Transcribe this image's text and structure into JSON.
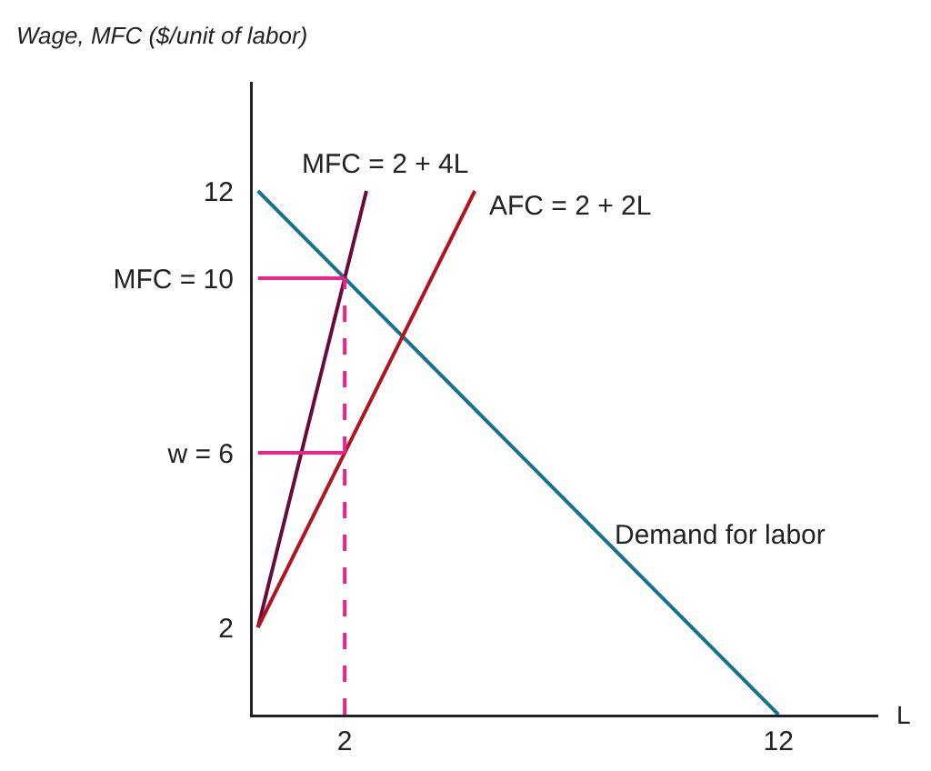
{
  "chart_data": {
    "type": "line",
    "xlabel": "L",
    "ylabel": "Wage, MFC ($/unit of labor)",
    "series": [
      {
        "color": "#1a7090",
        "x": [
          0,
          12
        ],
        "values": [
          12,
          0
        ]
      },
      {
        "color": "#6a0a3c",
        "x": [
          0,
          2.5
        ],
        "values": [
          2,
          12
        ]
      },
      {
        "color": "#b0141e",
        "x": [
          0,
          5
        ],
        "values": [
          2,
          12
        ]
      },
      {
        "color": "#ee2288",
        "x": [
          0,
          2
        ],
        "values": [
          10,
          10
        ]
      },
      {
        "color": "#ee2288",
        "x": [
          0,
          2
        ],
        "values": [
          6,
          6
        ]
      },
      {
        "color": "#ee2288",
        "x": [
          2,
          2
        ],
        "values": [
          0,
          10
        ],
        "line_style": "dashed"
      }
    ],
    "xlim": [
      -0.12,
      14.3
    ],
    "ylim": [
      0,
      14.5
    ],
    "xticks": [
      2,
      12
    ],
    "yticks": [
      2,
      {
        "value": 6,
        "label": "w = 6"
      },
      {
        "value": 10,
        "label": "MFC = 10"
      },
      12
    ],
    "annotations": [
      {
        "text": "MFC = 2 + 4L",
        "x": 2.5,
        "y": 12
      },
      {
        "text": "AFC = 2 + 2L",
        "x": 5,
        "y": 12
      },
      {
        "text": "Demand for labor",
        "x": 8.4,
        "y": 3.6
      }
    ],
    "grid": false,
    "marker": "none",
    "line_style": "solid"
  }
}
